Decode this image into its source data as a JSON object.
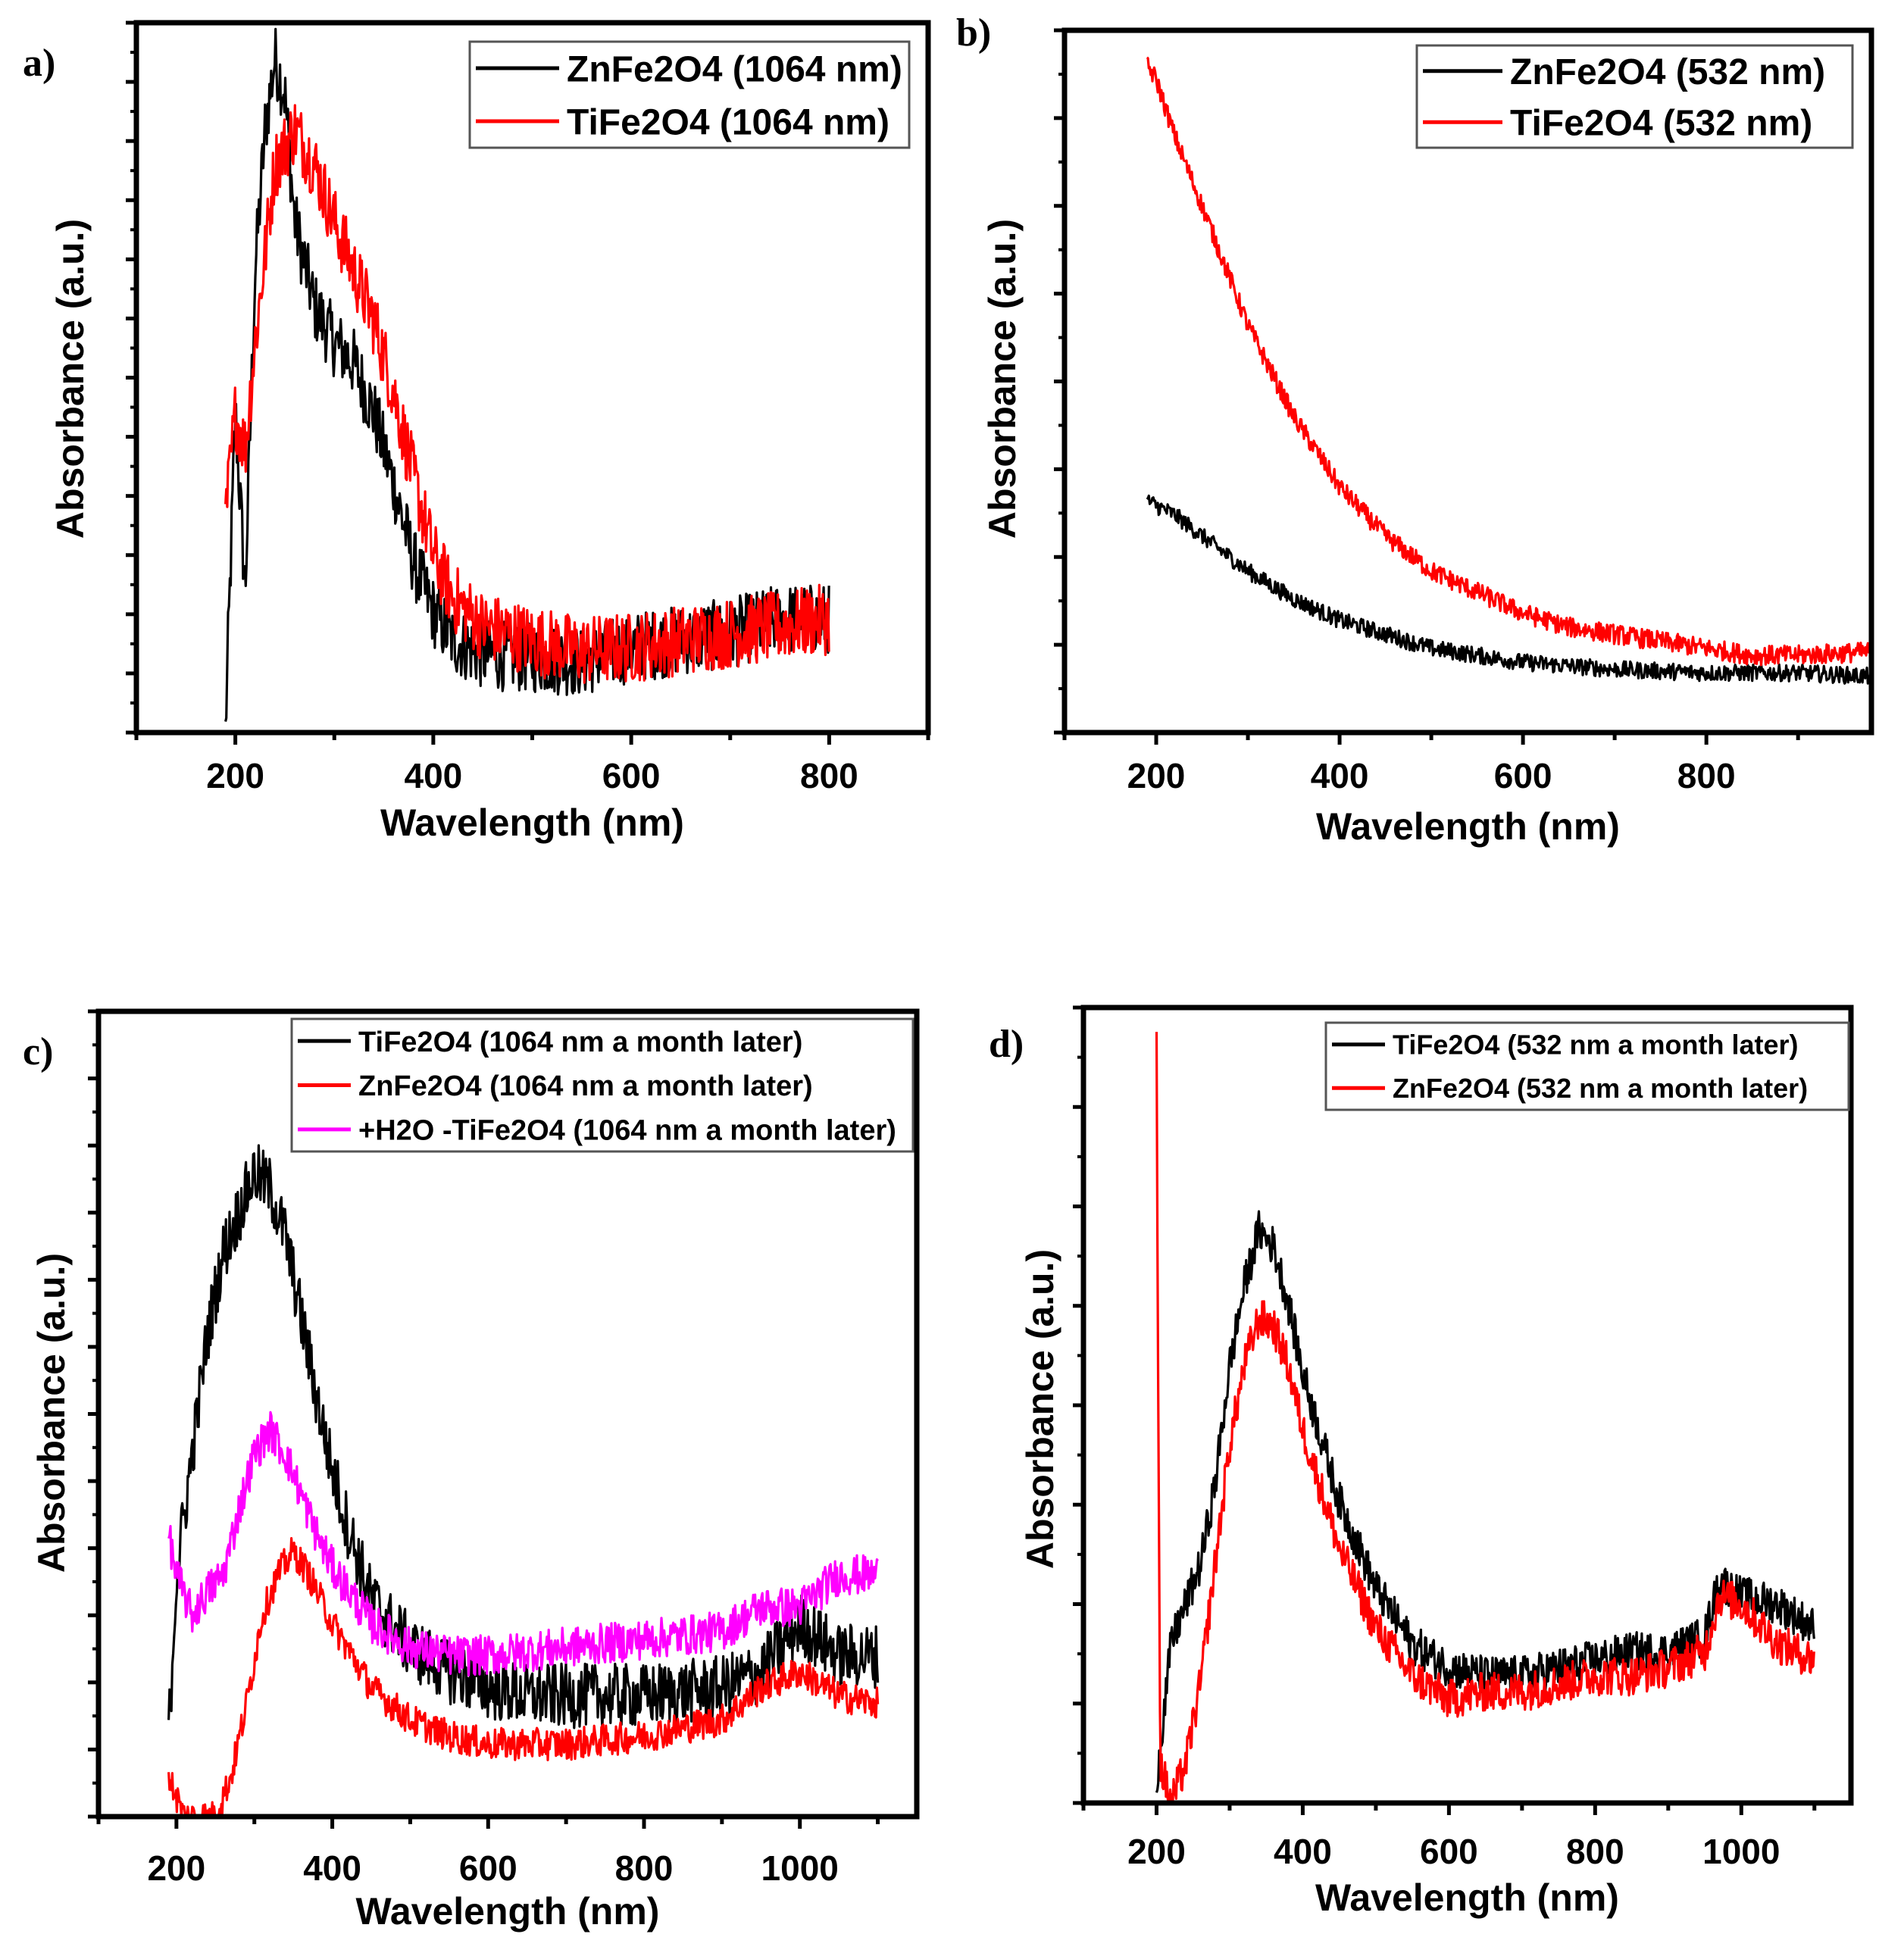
{
  "chart_data": [
    {
      "type": "line",
      "panel_label": "a)",
      "xlabel": "Wavelength (nm)",
      "ylabel": "Absorbance (a.u.)",
      "xlim": [
        100,
        900
      ],
      "ylim": [
        0,
        1
      ],
      "xticks": [
        200,
        400,
        600,
        800
      ],
      "x_tick_labels": [
        "200",
        "400",
        "600",
        "800"
      ],
      "y_tick_count": 13,
      "legend_position": "top-right",
      "series": [
        {
          "name": "ZnFe2O4 (1064 nm)",
          "color": "#000000",
          "noise": 0.05,
          "points": [
            [
              190,
              0.0
            ],
            [
              200,
              0.45
            ],
            [
              210,
              0.2
            ],
            [
              220,
              0.65
            ],
            [
              230,
              0.85
            ],
            [
              240,
              0.95
            ],
            [
              250,
              0.9
            ],
            [
              260,
              0.72
            ],
            [
              280,
              0.6
            ],
            [
              300,
              0.55
            ],
            [
              320,
              0.52
            ],
            [
              340,
              0.45
            ],
            [
              360,
              0.35
            ],
            [
              380,
              0.24
            ],
            [
              400,
              0.17
            ],
            [
              420,
              0.13
            ],
            [
              450,
              0.11
            ],
            [
              500,
              0.105
            ],
            [
              550,
              0.1
            ],
            [
              600,
              0.12
            ],
            [
              650,
              0.13
            ],
            [
              700,
              0.14
            ],
            [
              750,
              0.16
            ],
            [
              800,
              0.16
            ]
          ]
        },
        {
          "name": "TiFe2O4 (1064 nm)",
          "color": "#ff0000",
          "noise": 0.05,
          "points": [
            [
              190,
              0.3
            ],
            [
              200,
              0.45
            ],
            [
              210,
              0.4
            ],
            [
              220,
              0.55
            ],
            [
              240,
              0.8
            ],
            [
              260,
              0.85
            ],
            [
              280,
              0.8
            ],
            [
              300,
              0.72
            ],
            [
              320,
              0.65
            ],
            [
              340,
              0.58
            ],
            [
              360,
              0.48
            ],
            [
              380,
              0.36
            ],
            [
              400,
              0.25
            ],
            [
              420,
              0.19
            ],
            [
              450,
              0.15
            ],
            [
              500,
              0.13
            ],
            [
              550,
              0.115
            ],
            [
              600,
              0.12
            ],
            [
              650,
              0.13
            ],
            [
              700,
              0.14
            ],
            [
              750,
              0.15
            ],
            [
              800,
              0.16
            ]
          ]
        }
      ]
    },
    {
      "type": "line",
      "panel_label": "b)",
      "xlabel": "Wavelength (nm)",
      "ylabel": "Absorbance (a.u.)",
      "xlim": [
        100,
        980
      ],
      "ylim": [
        0,
        1
      ],
      "xticks": [
        200,
        400,
        600,
        800
      ],
      "x_tick_labels": [
        "200",
        "400",
        "600",
        "800"
      ],
      "y_tick_count": 9,
      "legend_position": "top-right",
      "series": [
        {
          "name": "ZnFe2O4 (532 nm)",
          "color": "#000000",
          "noise": 0.012,
          "points": [
            [
              190,
              0.33
            ],
            [
              220,
              0.31
            ],
            [
              260,
              0.27
            ],
            [
              300,
              0.23
            ],
            [
              350,
              0.19
            ],
            [
              400,
              0.16
            ],
            [
              450,
              0.14
            ],
            [
              500,
              0.12
            ],
            [
              550,
              0.11
            ],
            [
              600,
              0.1
            ],
            [
              650,
              0.095
            ],
            [
              700,
              0.09
            ],
            [
              800,
              0.085
            ],
            [
              900,
              0.085
            ],
            [
              980,
              0.08
            ]
          ]
        },
        {
          "name": "TiFe2O4 (532 nm)",
          "color": "#ff0000",
          "noise": 0.014,
          "points": [
            [
              190,
              0.95
            ],
            [
              200,
              0.93
            ],
            [
              220,
              0.85
            ],
            [
              250,
              0.75
            ],
            [
              300,
              0.58
            ],
            [
              350,
              0.45
            ],
            [
              400,
              0.35
            ],
            [
              450,
              0.28
            ],
            [
              500,
              0.23
            ],
            [
              550,
              0.2
            ],
            [
              600,
              0.17
            ],
            [
              650,
              0.15
            ],
            [
              700,
              0.14
            ],
            [
              750,
              0.13
            ],
            [
              800,
              0.12
            ],
            [
              850,
              0.11
            ],
            [
              900,
              0.11
            ],
            [
              980,
              0.115
            ]
          ]
        }
      ]
    },
    {
      "type": "line",
      "panel_label": "c)",
      "xlabel": "Wavelength (nm)",
      "ylabel": "Absorbance (a.u.)",
      "xlim": [
        100,
        1150
      ],
      "ylim": [
        0,
        1
      ],
      "xticks": [
        200,
        400,
        600,
        800,
        1000
      ],
      "x_tick_labels": [
        "200",
        "400",
        "600",
        "800",
        "1000"
      ],
      "y_tick_count": 13,
      "legend_position": "top-right",
      "series": [
        {
          "name": "TiFe2O4 (1064 nm a month later)",
          "color": "#000000",
          "noise": 0.04,
          "points": [
            [
              190,
              0.1
            ],
            [
              200,
              0.3
            ],
            [
              220,
              0.45
            ],
            [
              240,
              0.6
            ],
            [
              260,
              0.7
            ],
            [
              280,
              0.75
            ],
            [
              300,
              0.8
            ],
            [
              320,
              0.78
            ],
            [
              340,
              0.72
            ],
            [
              360,
              0.62
            ],
            [
              380,
              0.52
            ],
            [
              400,
              0.43
            ],
            [
              420,
              0.36
            ],
            [
              450,
              0.27
            ],
            [
              500,
              0.21
            ],
            [
              550,
              0.18
            ],
            [
              600,
              0.16
            ],
            [
              650,
              0.15
            ],
            [
              700,
              0.15
            ],
            [
              800,
              0.15
            ],
            [
              900,
              0.16
            ],
            [
              950,
              0.18
            ],
            [
              1000,
              0.24
            ],
            [
              1050,
              0.2
            ],
            [
              1100,
              0.2
            ]
          ]
        },
        {
          "name": "ZnFe2O4 (1064 nm a month later)",
          "color": "#ff0000",
          "noise": 0.02,
          "points": [
            [
              190,
              0.05
            ],
            [
              210,
              0.0
            ],
            [
              250,
              0.0
            ],
            [
              270,
              0.05
            ],
            [
              290,
              0.14
            ],
            [
              310,
              0.25
            ],
            [
              330,
              0.3
            ],
            [
              350,
              0.33
            ],
            [
              370,
              0.3
            ],
            [
              400,
              0.24
            ],
            [
              450,
              0.16
            ],
            [
              500,
              0.12
            ],
            [
              550,
              0.1
            ],
            [
              600,
              0.09
            ],
            [
              700,
              0.09
            ],
            [
              800,
              0.1
            ],
            [
              900,
              0.12
            ],
            [
              950,
              0.16
            ],
            [
              1000,
              0.18
            ],
            [
              1050,
              0.15
            ],
            [
              1100,
              0.14
            ]
          ]
        },
        {
          "name": "+H2O -TiFe2O4 (1064 nm a month later)",
          "color": "#ff00ff",
          "noise": 0.025,
          "points": [
            [
              190,
              0.35
            ],
            [
              200,
              0.3
            ],
            [
              220,
              0.25
            ],
            [
              240,
              0.28
            ],
            [
              260,
              0.3
            ],
            [
              280,
              0.38
            ],
            [
              300,
              0.45
            ],
            [
              320,
              0.48
            ],
            [
              340,
              0.45
            ],
            [
              360,
              0.4
            ],
            [
              380,
              0.35
            ],
            [
              400,
              0.31
            ],
            [
              450,
              0.24
            ],
            [
              500,
              0.21
            ],
            [
              550,
              0.2
            ],
            [
              600,
              0.2
            ],
            [
              700,
              0.21
            ],
            [
              800,
              0.22
            ],
            [
              900,
              0.23
            ],
            [
              950,
              0.26
            ],
            [
              1000,
              0.26
            ],
            [
              1050,
              0.3
            ],
            [
              1100,
              0.3
            ]
          ]
        }
      ]
    },
    {
      "type": "line",
      "panel_label": "d)",
      "xlabel": "Wavelength (nm)",
      "ylabel": "Absorbance (a.u.)",
      "xlim": [
        100,
        1150
      ],
      "ylim": [
        0,
        1
      ],
      "xticks": [
        200,
        400,
        600,
        800,
        1000
      ],
      "x_tick_labels": [
        "200",
        "400",
        "600",
        "800",
        "1000"
      ],
      "y_tick_count": 9,
      "legend_position": "top-right",
      "series": [
        {
          "name": "TiFe2O4 (532 nm a month later)",
          "color": "#000000",
          "noise": 0.025,
          "points": [
            [
              200,
              0.03
            ],
            [
              220,
              0.2
            ],
            [
              240,
              0.25
            ],
            [
              260,
              0.3
            ],
            [
              280,
              0.4
            ],
            [
              300,
              0.55
            ],
            [
              320,
              0.65
            ],
            [
              340,
              0.72
            ],
            [
              360,
              0.7
            ],
            [
              380,
              0.63
            ],
            [
              400,
              0.54
            ],
            [
              450,
              0.38
            ],
            [
              500,
              0.27
            ],
            [
              550,
              0.2
            ],
            [
              600,
              0.17
            ],
            [
              650,
              0.16
            ],
            [
              700,
              0.16
            ],
            [
              750,
              0.17
            ],
            [
              800,
              0.18
            ],
            [
              850,
              0.19
            ],
            [
              900,
              0.19
            ],
            [
              950,
              0.21
            ],
            [
              970,
              0.28
            ],
            [
              1000,
              0.26
            ],
            [
              1050,
              0.25
            ],
            [
              1100,
              0.22
            ]
          ]
        },
        {
          "name": "ZnFe2O4 (532 nm a month later)",
          "color": "#ff0000",
          "noise": 0.025,
          "points": [
            [
              200,
              0.95
            ],
            [
              205,
              0.05
            ],
            [
              220,
              0.0
            ],
            [
              240,
              0.05
            ],
            [
              260,
              0.15
            ],
            [
              280,
              0.3
            ],
            [
              300,
              0.45
            ],
            [
              320,
              0.55
            ],
            [
              340,
              0.61
            ],
            [
              360,
              0.6
            ],
            [
              380,
              0.55
            ],
            [
              400,
              0.47
            ],
            [
              450,
              0.32
            ],
            [
              500,
              0.22
            ],
            [
              550,
              0.16
            ],
            [
              600,
              0.13
            ],
            [
              650,
              0.14
            ],
            [
              700,
              0.14
            ],
            [
              750,
              0.15
            ],
            [
              800,
              0.16
            ],
            [
              850,
              0.16
            ],
            [
              900,
              0.17
            ],
            [
              950,
              0.19
            ],
            [
              970,
              0.26
            ],
            [
              1000,
              0.25
            ],
            [
              1050,
              0.2
            ],
            [
              1100,
              0.18
            ]
          ]
        }
      ]
    }
  ]
}
